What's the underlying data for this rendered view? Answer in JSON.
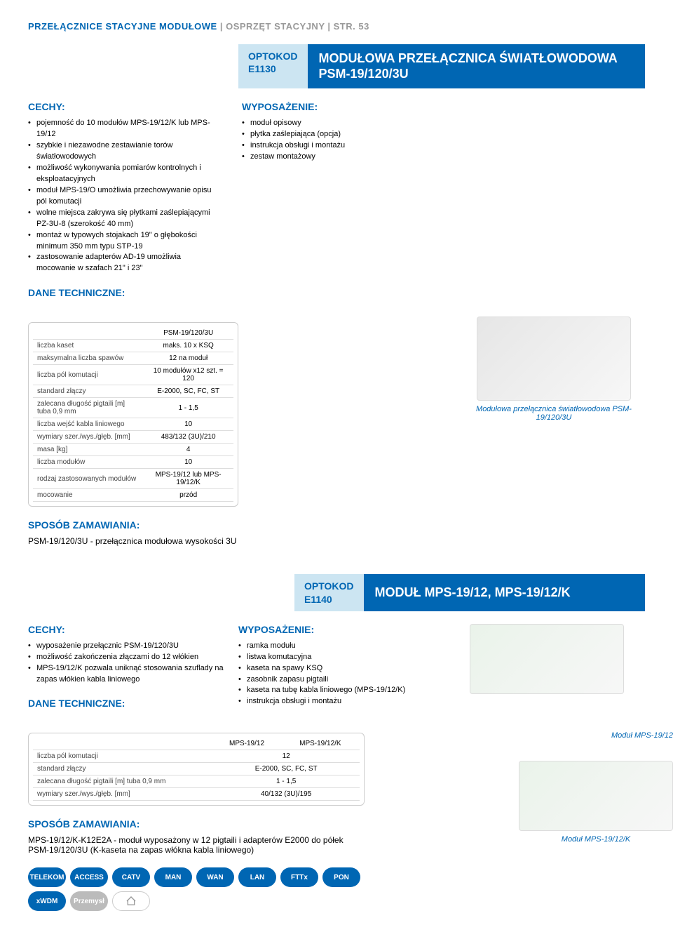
{
  "breadcrumb": {
    "a": "PRZEŁĄCZNICE STACYJNE MODUŁOWE",
    "b": "OSPRZĘT STACYJNY",
    "c": "STR. 53"
  },
  "product1": {
    "optokod_label": "OPTOKOD",
    "optokod_code": "E1130",
    "title": "MODUŁOWA PRZEŁĄCZNICA ŚWIATŁOWODOWA PSM-19/120/3U",
    "cechy_title": "CECHY:",
    "cechy": [
      "pojemność do 10 modułów MPS-19/12/K lub MPS-19/12",
      "szybkie i niezawodne zestawianie torów światłowodowych",
      "możliwość wykonywania pomiarów kontrolnych i eksploatacyjnych",
      "moduł MPS-19/O umożliwia przechowywanie opisu pól komutacji",
      "wolne miejsca zakrywa się płytkami zaślepiającymi PZ-3U-8 (szerokość 40 mm)",
      "montaż w typowych stojakach 19\" o głębokości minimum 350 mm typu STP-19",
      "zastosowanie adapterów AD-19 umożliwia mocowanie w szafach 21\" i 23\""
    ],
    "wyp_title": "WYPOSAŻENIE:",
    "wyp": [
      "moduł opisowy",
      "płytka zaślepiająca (opcja)",
      "instrukcja obsługi i montażu",
      "zestaw montażowy"
    ],
    "dane_title": "DANE TECHNICZNE:",
    "table_header": "PSM-19/120/3U",
    "table": [
      [
        "liczba kaset",
        "maks. 10 x KSQ"
      ],
      [
        "maksymalna liczba spawów",
        "12 na moduł"
      ],
      [
        "liczba pól komutacji",
        "10 modułów x12 szt. = 120"
      ],
      [
        "standard złączy",
        "E-2000, SC, FC, ST"
      ],
      [
        "zalecana długość pigtaili [m] tuba 0,9 mm",
        "1 - 1,5"
      ],
      [
        "liczba wejść kabla liniowego",
        "10"
      ],
      [
        "wymiary szer./wys./głęb. [mm]",
        "483/132 (3U)/210"
      ],
      [
        "masa [kg]",
        "4"
      ],
      [
        "liczba modułów",
        "10"
      ],
      [
        "rodzaj zastosowanych modułów",
        "MPS-19/12 lub MPS-19/12/K"
      ],
      [
        "mocowanie",
        "przód"
      ]
    ],
    "fig_caption": "Modułowa przełącznica światłowodowa PSM-19/120/3U",
    "order_title": "SPOSÓB ZAMAWIANIA:",
    "order_text": "PSM-19/120/3U - przełącznica modułowa wysokości 3U"
  },
  "product2": {
    "optokod_label": "OPTOKOD",
    "optokod_code": "E1140",
    "title": "MODUŁ MPS-19/12, MPS-19/12/K",
    "cechy_title": "CECHY:",
    "cechy": [
      "wyposażenie przełącznic PSM-19/120/3U",
      "możliwość zakończenia złączami do 12 włókien",
      "MPS-19/12/K pozwala uniknąć stosowania szuflady na zapas włókien kabla liniowego"
    ],
    "wyp_title": "WYPOSAŻENIE:",
    "wyp": [
      "ramka modułu",
      "listwa komutacyjna",
      "kaseta na spawy KSQ",
      "zasobnik zapasu pigtaili",
      "kaseta na tubę kabla liniowego (MPS-19/12/K)",
      "instrukcja obsługi i montażu"
    ],
    "dane_title": "DANE TECHNICZNE:",
    "table_h1": "MPS-19/12",
    "table_h2": "MPS-19/12/K",
    "table": [
      [
        "liczba pól komutacji",
        "12",
        ""
      ],
      [
        "standard złączy",
        "E-2000, SC, FC, ST",
        ""
      ],
      [
        "zalecana długość pigtaili [m] tuba 0,9 mm",
        "1 - 1,5",
        ""
      ],
      [
        "wymiary szer./wys./głęb. [mm]",
        "40/132 (3U)/195",
        ""
      ]
    ],
    "order_title": "SPOSÓB ZAMAWIANIA:",
    "order_text": "MPS-19/12/K-K12E2A - moduł wyposażony w 12 pigtaili i adapterów E2000 do półek PSM-19/120/3U (K-kaseta na zapas włókna kabla liniowego)",
    "fig1_caption": "Moduł MPS-19/12",
    "fig2_caption": "Moduł MPS-19/12/K"
  },
  "chips": [
    "TELEKOM",
    "ACCESS",
    "CATV",
    "MAN",
    "WAN",
    "LAN",
    "FTTx",
    "PON",
    "xWDM",
    "Przemysł"
  ]
}
